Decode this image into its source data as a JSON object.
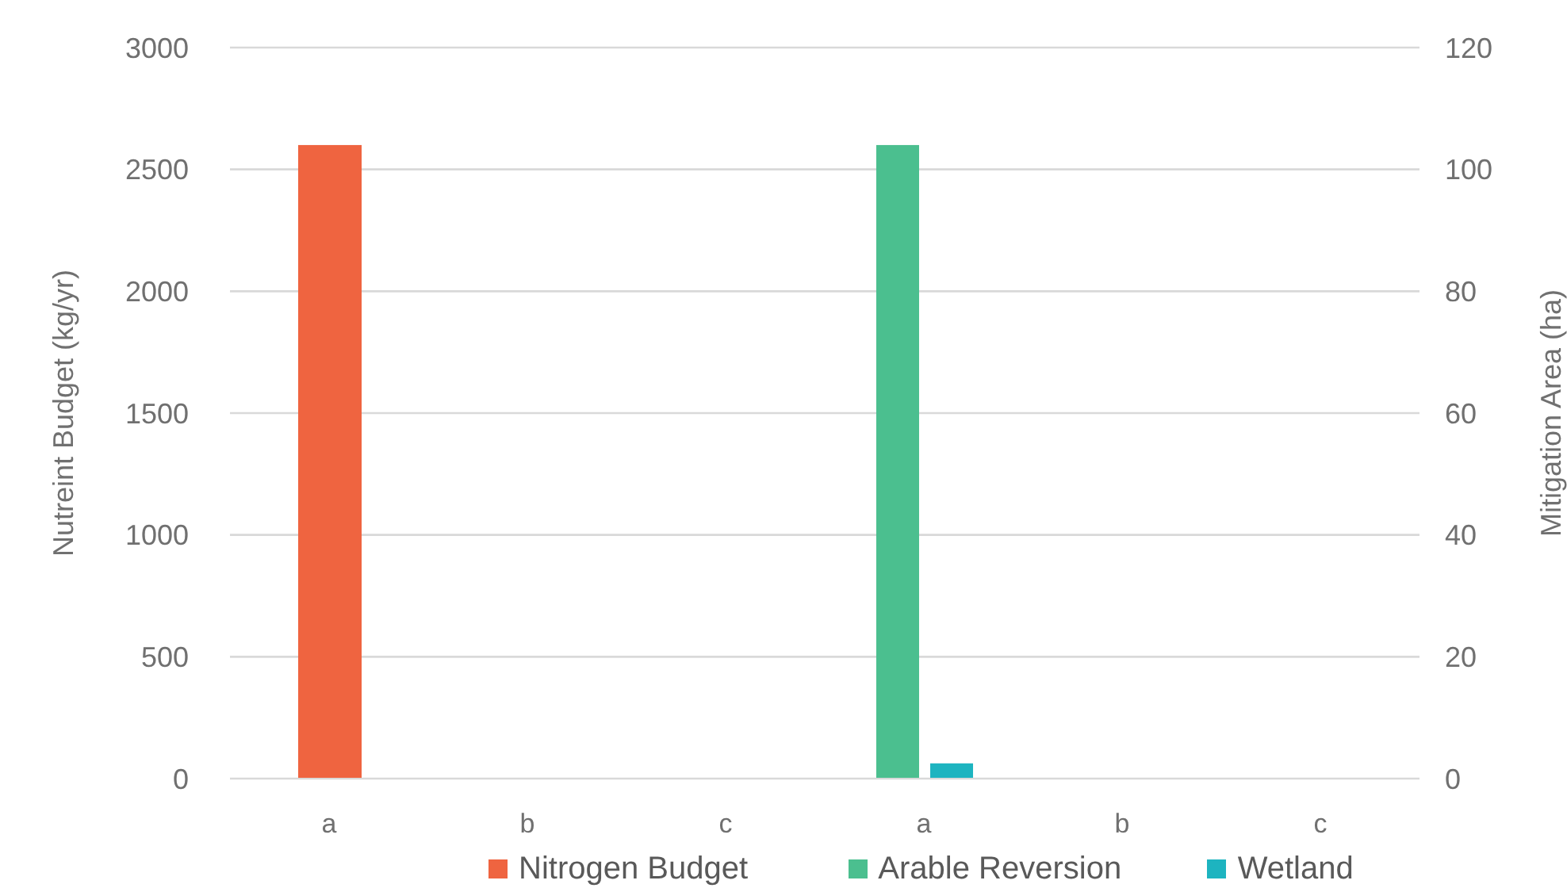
{
  "chart_data": {
    "type": "bar",
    "categories": [
      "a",
      "b",
      "c",
      "a",
      "b",
      "c"
    ],
    "series": [
      {
        "name": "Nitrogen Budget",
        "color": "#ef6440",
        "values": [
          2600,
          null,
          null,
          null,
          null,
          null
        ]
      },
      {
        "name": "Arable Reversion",
        "color": "#4bbf8f",
        "axis": "y2",
        "values": [
          null,
          null,
          null,
          104,
          null,
          null
        ]
      },
      {
        "name": "Wetland",
        "color": "#1db4c0",
        "axis": "y2",
        "values": [
          null,
          null,
          null,
          2.5,
          null,
          null
        ]
      }
    ],
    "ylabel": "Nutreint Budget (kg/yr)",
    "y2label": "Mitigation Area (ha)",
    "ylim": [
      0,
      3000
    ],
    "yticks": [
      0,
      500,
      1000,
      1500,
      2000,
      2500,
      3000
    ],
    "y2lim": [
      0,
      120
    ],
    "y2ticks": [
      0,
      20,
      40,
      60,
      80,
      100,
      120
    ],
    "grid": "y",
    "legend": "bottom"
  }
}
